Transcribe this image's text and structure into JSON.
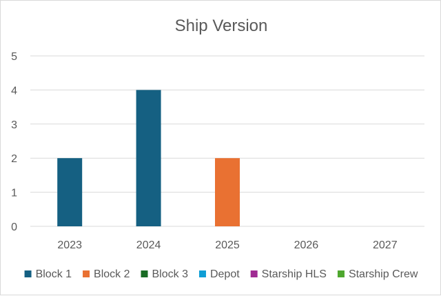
{
  "chart_data": {
    "type": "bar",
    "title": "Ship Version",
    "xlabel": "",
    "ylabel": "",
    "categories": [
      "2023",
      "2024",
      "2025",
      "2026",
      "2027"
    ],
    "series": [
      {
        "name": "Block 1",
        "color": "#156082",
        "values": [
          2,
          4,
          0,
          0,
          0
        ]
      },
      {
        "name": "Block 2",
        "color": "#e97132",
        "values": [
          0,
          0,
          2,
          0,
          0
        ]
      },
      {
        "name": "Block 3",
        "color": "#196b24",
        "values": [
          0,
          0,
          0,
          0,
          0
        ]
      },
      {
        "name": "Depot",
        "color": "#0f9ed5",
        "values": [
          0,
          0,
          0,
          0,
          0
        ]
      },
      {
        "name": "Starship HLS",
        "color": "#a02b93",
        "values": [
          0,
          0,
          0,
          0,
          0
        ]
      },
      {
        "name": "Starship Crew",
        "color": "#4ea72e",
        "values": [
          0,
          0,
          0,
          0,
          0
        ]
      }
    ],
    "ylim": [
      0,
      5
    ],
    "yticks": [
      "0",
      "1",
      "2",
      "3",
      "4",
      "5"
    ],
    "grid": true,
    "legend_position": "bottom",
    "stacked": true
  }
}
